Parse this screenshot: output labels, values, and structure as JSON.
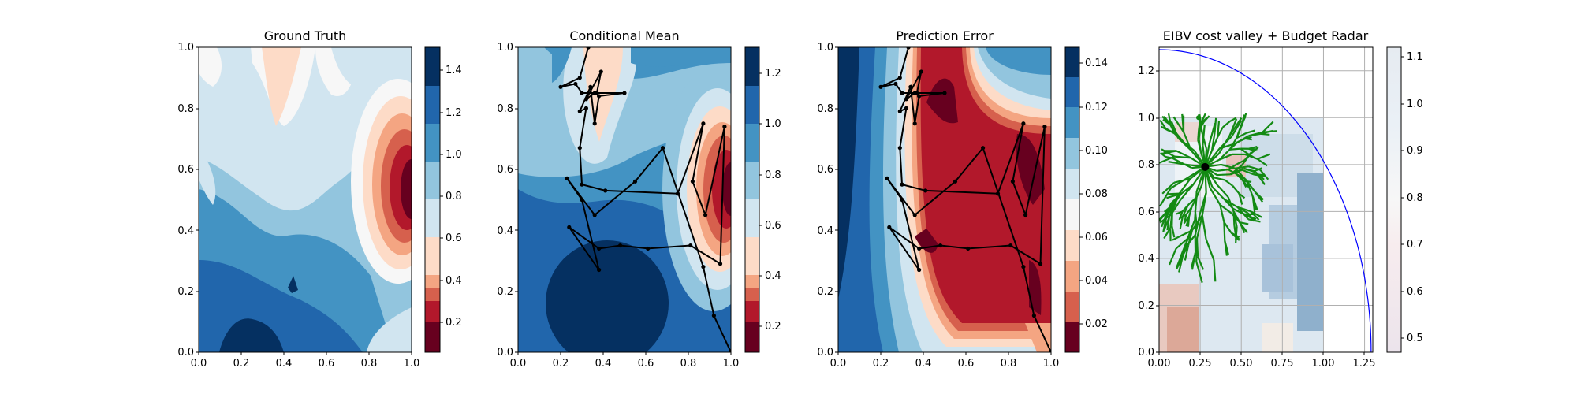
{
  "chart_data": [
    {
      "type": "heatmap",
      "title": "Ground Truth",
      "xlabel": "",
      "ylabel": "",
      "xlim": [
        0,
        1
      ],
      "ylim": [
        0,
        1
      ],
      "xticks": [
        "0.0",
        "0.2",
        "0.4",
        "0.6",
        "0.8",
        "1.0"
      ],
      "yticks": [
        "0.0",
        "0.2",
        "0.4",
        "0.6",
        "0.8",
        "1.0"
      ],
      "colormap": "RdBu",
      "colorbar": {
        "range": [
          0.05,
          1.5
        ],
        "ticks": [
          "0.2",
          "0.4",
          "0.6",
          "0.8",
          "1.0",
          "1.2",
          "1.4"
        ]
      },
      "grid": false
    },
    {
      "type": "heatmap",
      "title": "Conditional Mean",
      "xlabel": "",
      "ylabel": "",
      "xlim": [
        0,
        1
      ],
      "ylim": [
        0,
        1
      ],
      "xticks": [
        "0.0",
        "0.2",
        "0.4",
        "0.6",
        "0.8",
        "1.0"
      ],
      "yticks": [
        "0.0",
        "0.2",
        "0.4",
        "0.6",
        "0.8",
        "1.0"
      ],
      "colormap": "RdBu",
      "colorbar": {
        "range": [
          0.1,
          1.3
        ],
        "ticks": [
          "0.2",
          "0.4",
          "0.6",
          "0.8",
          "1.0",
          "1.2"
        ]
      },
      "path": [
        [
          0.33,
          1.0
        ],
        [
          0.29,
          0.9
        ],
        [
          0.2,
          0.87
        ],
        [
          0.27,
          0.88
        ],
        [
          0.3,
          0.85
        ],
        [
          0.36,
          0.85
        ],
        [
          0.32,
          0.83
        ],
        [
          0.39,
          0.92
        ],
        [
          0.37,
          0.85
        ],
        [
          0.5,
          0.85
        ],
        [
          0.38,
          0.84
        ],
        [
          0.36,
          0.75
        ],
        [
          0.34,
          0.87
        ],
        [
          0.29,
          0.79
        ],
        [
          0.32,
          0.8
        ],
        [
          0.29,
          0.67
        ],
        [
          0.3,
          0.55
        ],
        [
          0.41,
          0.53
        ],
        [
          0.75,
          0.52
        ],
        [
          0.87,
          0.75
        ],
        [
          0.82,
          0.56
        ],
        [
          0.88,
          0.45
        ],
        [
          0.97,
          0.74
        ],
        [
          0.95,
          0.29
        ],
        [
          0.81,
          0.35
        ],
        [
          0.61,
          0.34
        ],
        [
          0.48,
          0.35
        ],
        [
          0.38,
          0.34
        ],
        [
          0.24,
          0.41
        ],
        [
          0.38,
          0.27
        ],
        [
          0.3,
          0.5
        ],
        [
          0.23,
          0.57
        ],
        [
          0.36,
          0.45
        ],
        [
          0.55,
          0.56
        ],
        [
          0.68,
          0.67
        ],
        [
          0.87,
          0.28
        ],
        [
          0.92,
          0.12
        ],
        [
          1.0,
          0.0
        ]
      ],
      "grid": false
    },
    {
      "type": "heatmap",
      "title": "Prediction Error",
      "xlabel": "",
      "ylabel": "",
      "xlim": [
        0,
        1
      ],
      "ylim": [
        0,
        1
      ],
      "xticks": [
        "0.0",
        "0.2",
        "0.4",
        "0.6",
        "0.8",
        "1.0"
      ],
      "yticks": [
        "0.0",
        "0.2",
        "0.4",
        "0.6",
        "0.8",
        "1.0"
      ],
      "colormap": "RdBu",
      "colorbar": {
        "range": [
          0.005,
          0.148
        ],
        "ticks": [
          "0.02",
          "0.04",
          "0.06",
          "0.08",
          "0.10",
          "0.12",
          "0.14"
        ]
      },
      "grid": false
    },
    {
      "type": "scatter",
      "title": "EIBV cost valley + Budget Radar",
      "xlabel": "",
      "ylabel": "",
      "xlim": [
        0,
        1.3
      ],
      "ylim": [
        0,
        1.3
      ],
      "xticks": [
        "0.00",
        "0.25",
        "0.50",
        "0.75",
        "1.00",
        "1.25"
      ],
      "yticks": [
        "0.0",
        "0.2",
        "0.4",
        "0.6",
        "0.8",
        "1.0",
        "1.2"
      ],
      "colormap": "RdBu",
      "colorbar": {
        "range": [
          0.47,
          1.12
        ],
        "ticks": [
          "0.5",
          "0.6",
          "0.7",
          "0.8",
          "0.9",
          "1.0",
          "1.1"
        ]
      },
      "current_location": [
        0.28,
        0.79
      ],
      "start_location": [
        0.24,
        1.0
      ],
      "budget_radius": 1.29,
      "grid": true
    }
  ],
  "colors": {
    "tree": "#138a13",
    "radar": "#0000ff",
    "path": "#000000",
    "marker": "#000000"
  }
}
